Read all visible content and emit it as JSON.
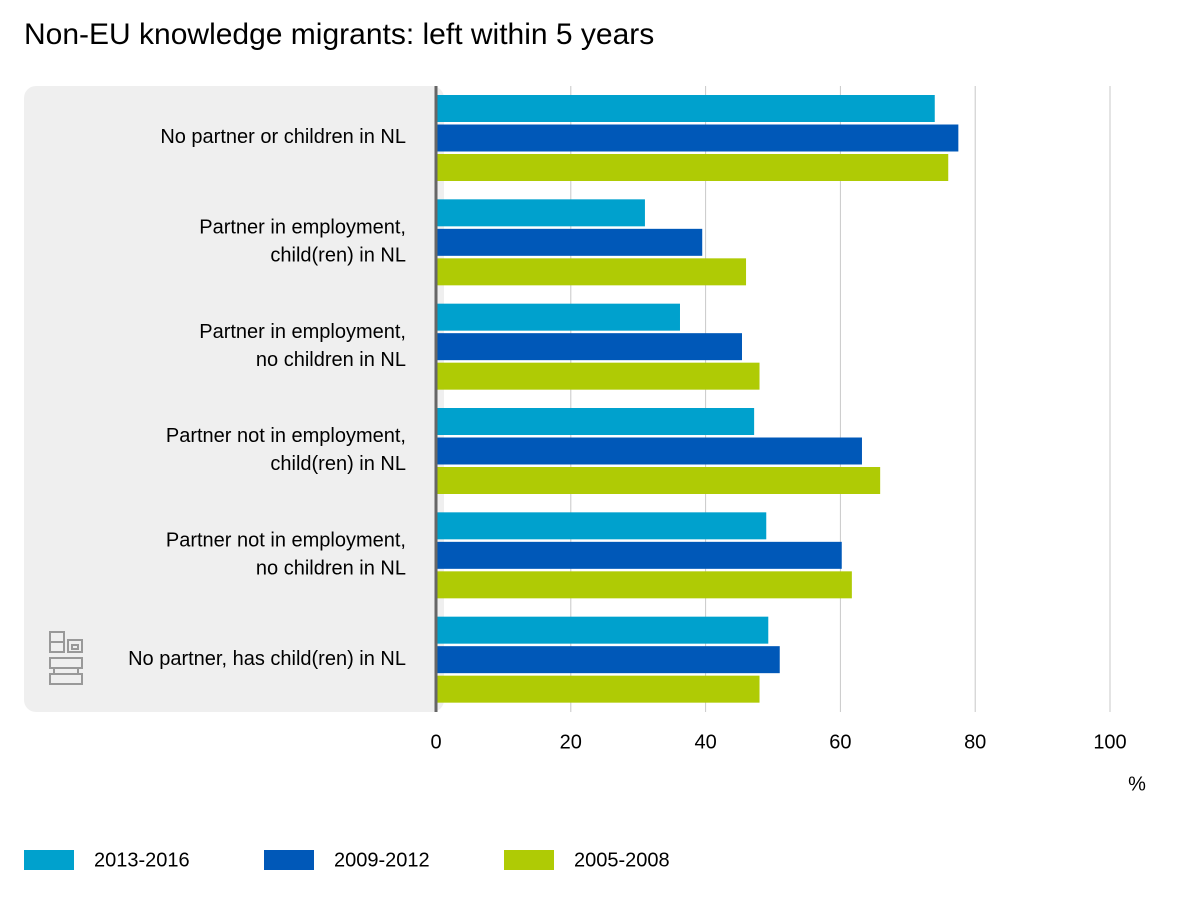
{
  "chart_data": {
    "type": "hbar",
    "title": "Non-EU knowledge migrants: left within 5 years",
    "categories": [
      [
        "No partner or children in NL"
      ],
      [
        "Partner in employment,",
        "child(ren) in NL"
      ],
      [
        "Partner in employment,",
        "no children in NL"
      ],
      [
        "Partner not in employment,",
        "child(ren) in NL"
      ],
      [
        "Partner not in employment,",
        "no children in NL"
      ],
      [
        "No partner, has child(ren) in NL"
      ]
    ],
    "series": [
      {
        "name": "2013-2016",
        "color": "#00a1cd",
        "values": [
          74,
          31,
          36.2,
          47.2,
          49,
          49.3
        ]
      },
      {
        "name": "2009-2012",
        "color": "#0058b8",
        "values": [
          77.5,
          39.5,
          45.4,
          63.2,
          60.2,
          51
        ]
      },
      {
        "name": "2005-2008",
        "color": "#afcb05",
        "values": [
          76,
          46,
          48,
          65.9,
          61.7,
          48
        ]
      }
    ],
    "xlim": [
      0,
      100
    ],
    "xticks": [
      0,
      20,
      40,
      60,
      80,
      100
    ],
    "x_unit": "%",
    "grid": true
  }
}
